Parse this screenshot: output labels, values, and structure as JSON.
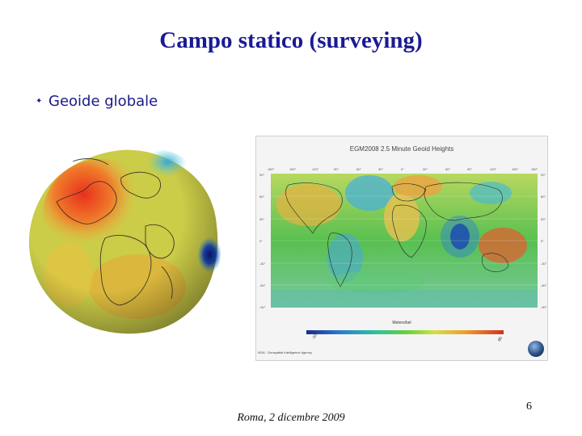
{
  "slide": {
    "title": "Campo statico (surveying)",
    "bullets": [
      {
        "text": "Geoide globale"
      }
    ],
    "footer": "Roma, 2 dicembre 2009",
    "page_number": "6"
  },
  "map_figure": {
    "title": "EGM2008 2.5 Minute Geoid Heights",
    "colorbar_label": "Meters/bel",
    "colorbar_min": "-107",
    "colorbar_max": "85",
    "credit": "NGA - Geospatial Intelligence Agency",
    "lon_ticks": [
      "180°",
      "150°",
      "120°",
      "90°",
      "60°",
      "30°",
      "0°",
      "30°",
      "60°",
      "90°",
      "120°",
      "150°",
      "180°"
    ],
    "lat_ticks": [
      "90°",
      "60°",
      "30°",
      "0°",
      "-30°",
      "-60°",
      "-90°"
    ]
  },
  "colors": {
    "title": "#1a1a96",
    "bullet_text": "#1a1a8a"
  }
}
